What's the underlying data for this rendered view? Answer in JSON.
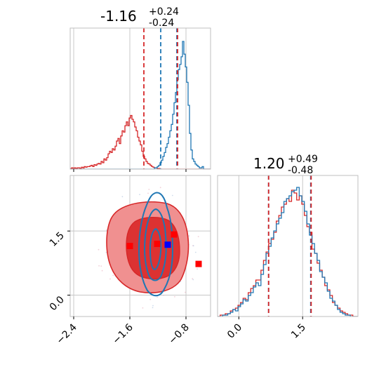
{
  "chart_data": {
    "type": "corner",
    "colors": {
      "blue": "#1f77b4",
      "red": "#d62728",
      "fill_light": "#f09090",
      "fill_dark": "#dc3232",
      "truth_marker": "#0000ff",
      "grid": "#c8c8c8"
    },
    "parameters": [
      {
        "index": 0,
        "median": "-1.16",
        "upper": "+0.24",
        "lower": "-0.24",
        "range": [
          -2.45,
          -0.45
        ],
        "ticks": [
          {
            "value": -2.4,
            "label": "−2.4"
          },
          {
            "value": -1.6,
            "label": "−1.6"
          },
          {
            "value": -0.8,
            "label": "−0.8"
          }
        ],
        "red_quantiles": [
          -1.4,
          -0.92
        ],
        "blue_quantiles": [
          -1.16,
          -0.93
        ],
        "blue_hist": [
          0,
          0,
          0,
          0,
          0,
          0,
          0,
          0,
          0,
          0,
          0,
          0,
          0,
          0,
          0,
          0,
          0,
          0,
          0,
          0,
          0,
          0,
          0,
          0,
          0,
          0,
          0,
          0,
          0,
          0,
          0,
          0,
          0,
          0,
          0,
          0,
          0,
          0,
          0,
          0,
          0,
          0,
          0,
          0,
          0,
          0,
          0,
          0,
          0,
          0,
          0,
          0,
          0,
          0,
          0,
          0,
          0,
          0,
          0,
          0,
          0.01,
          0.01,
          0.02,
          0.03,
          0.05,
          0.07,
          0.1,
          0.13,
          0.17,
          0.2,
          0.25,
          0.3,
          0.35,
          0.43,
          0.52,
          0.6,
          0.7,
          0.78,
          0.82,
          0.88,
          1.0,
          0.9,
          0.8,
          0.68,
          0.5,
          0.28,
          0.15,
          0.08,
          0.06,
          0.04,
          0.03,
          0.02,
          0.01,
          0.01,
          0.02,
          0,
          0,
          0,
          0,
          0
        ],
        "red_hist": [
          0.005,
          0.01,
          0.005,
          0.01,
          0.005,
          0.01,
          0.01,
          0.005,
          0.015,
          0.01,
          0.02,
          0.015,
          0.02,
          0.02,
          0.025,
          0.03,
          0.02,
          0.035,
          0.03,
          0.04,
          0.045,
          0.04,
          0.06,
          0.05,
          0.08,
          0.07,
          0.09,
          0.12,
          0.14,
          0.13,
          0.16,
          0.15,
          0.18,
          0.22,
          0.24,
          0.2,
          0.26,
          0.3,
          0.29,
          0.34,
          0.37,
          0.34,
          0.4,
          0.42,
          0.39,
          0.37,
          0.33,
          0.3,
          0.25,
          0.22,
          0.19,
          0.14,
          0.1,
          0.08,
          0.06,
          0.045,
          0.04,
          0.03,
          0.02,
          0.015,
          0.01,
          0.01,
          0.005,
          0.005,
          0,
          0,
          0,
          0,
          0,
          0,
          0,
          0,
          0,
          0,
          0,
          0,
          0,
          0,
          0,
          0,
          0,
          0,
          0,
          0,
          0,
          0,
          0,
          0,
          0,
          0,
          0,
          0,
          0,
          0,
          0,
          0,
          0,
          0,
          0,
          0
        ]
      },
      {
        "index": 1,
        "median": "1.20",
        "upper": "+0.49",
        "lower": "-0.48",
        "range": [
          -0.5,
          2.8
        ],
        "ticks": [
          {
            "value": 0.0,
            "label": "0.0"
          },
          {
            "value": 1.5,
            "label": "1.5"
          }
        ],
        "red_quantiles": [
          0.7,
          1.7
        ],
        "blue_quantiles": [
          0.7,
          1.69
        ],
        "blue_hist": [
          0.0,
          0.0,
          0.01,
          0.01,
          0.02,
          0.03,
          0.05,
          0.04,
          0.07,
          0.09,
          0.12,
          0.11,
          0.15,
          0.17,
          0.21,
          0.24,
          0.22,
          0.3,
          0.37,
          0.45,
          0.5,
          0.56,
          0.61,
          0.66,
          0.7,
          0.74,
          0.82,
          0.84,
          0.86,
          0.89,
          0.9,
          0.92,
          0.86,
          0.82,
          0.75,
          0.66,
          0.58,
          0.52,
          0.45,
          0.4,
          0.32,
          0.28,
          0.24,
          0.18,
          0.13,
          0.11,
          0.08,
          0.05,
          0.03,
          0.02,
          0.01,
          0.01,
          0.0,
          0.0,
          0.0
        ],
        "red_hist": [
          0.0,
          0.01,
          0.01,
          0.02,
          0.02,
          0.04,
          0.05,
          0.06,
          0.08,
          0.1,
          0.13,
          0.12,
          0.17,
          0.2,
          0.22,
          0.26,
          0.26,
          0.33,
          0.4,
          0.46,
          0.52,
          0.55,
          0.6,
          0.68,
          0.72,
          0.78,
          0.8,
          0.84,
          0.82,
          0.9,
          0.88,
          0.83,
          0.86,
          0.8,
          0.72,
          0.64,
          0.6,
          0.48,
          0.45,
          0.38,
          0.33,
          0.28,
          0.22,
          0.19,
          0.15,
          0.1,
          0.08,
          0.06,
          0.04,
          0.03,
          0.02,
          0.01,
          0.01,
          0.0,
          0.0
        ]
      }
    ],
    "scatter_2d": {
      "x_range": [
        -2.45,
        -0.45
      ],
      "y_range": [
        -0.5,
        2.8
      ],
      "red_markers": [
        {
          "x": -1.6,
          "y": 1.15
        },
        {
          "x": -1.21,
          "y": 1.2
        },
        {
          "x": -0.97,
          "y": 1.42
        },
        {
          "x": -0.62,
          "y": 0.73
        }
      ],
      "blue_marker": {
        "x": -1.06,
        "y": 1.18
      }
    }
  }
}
